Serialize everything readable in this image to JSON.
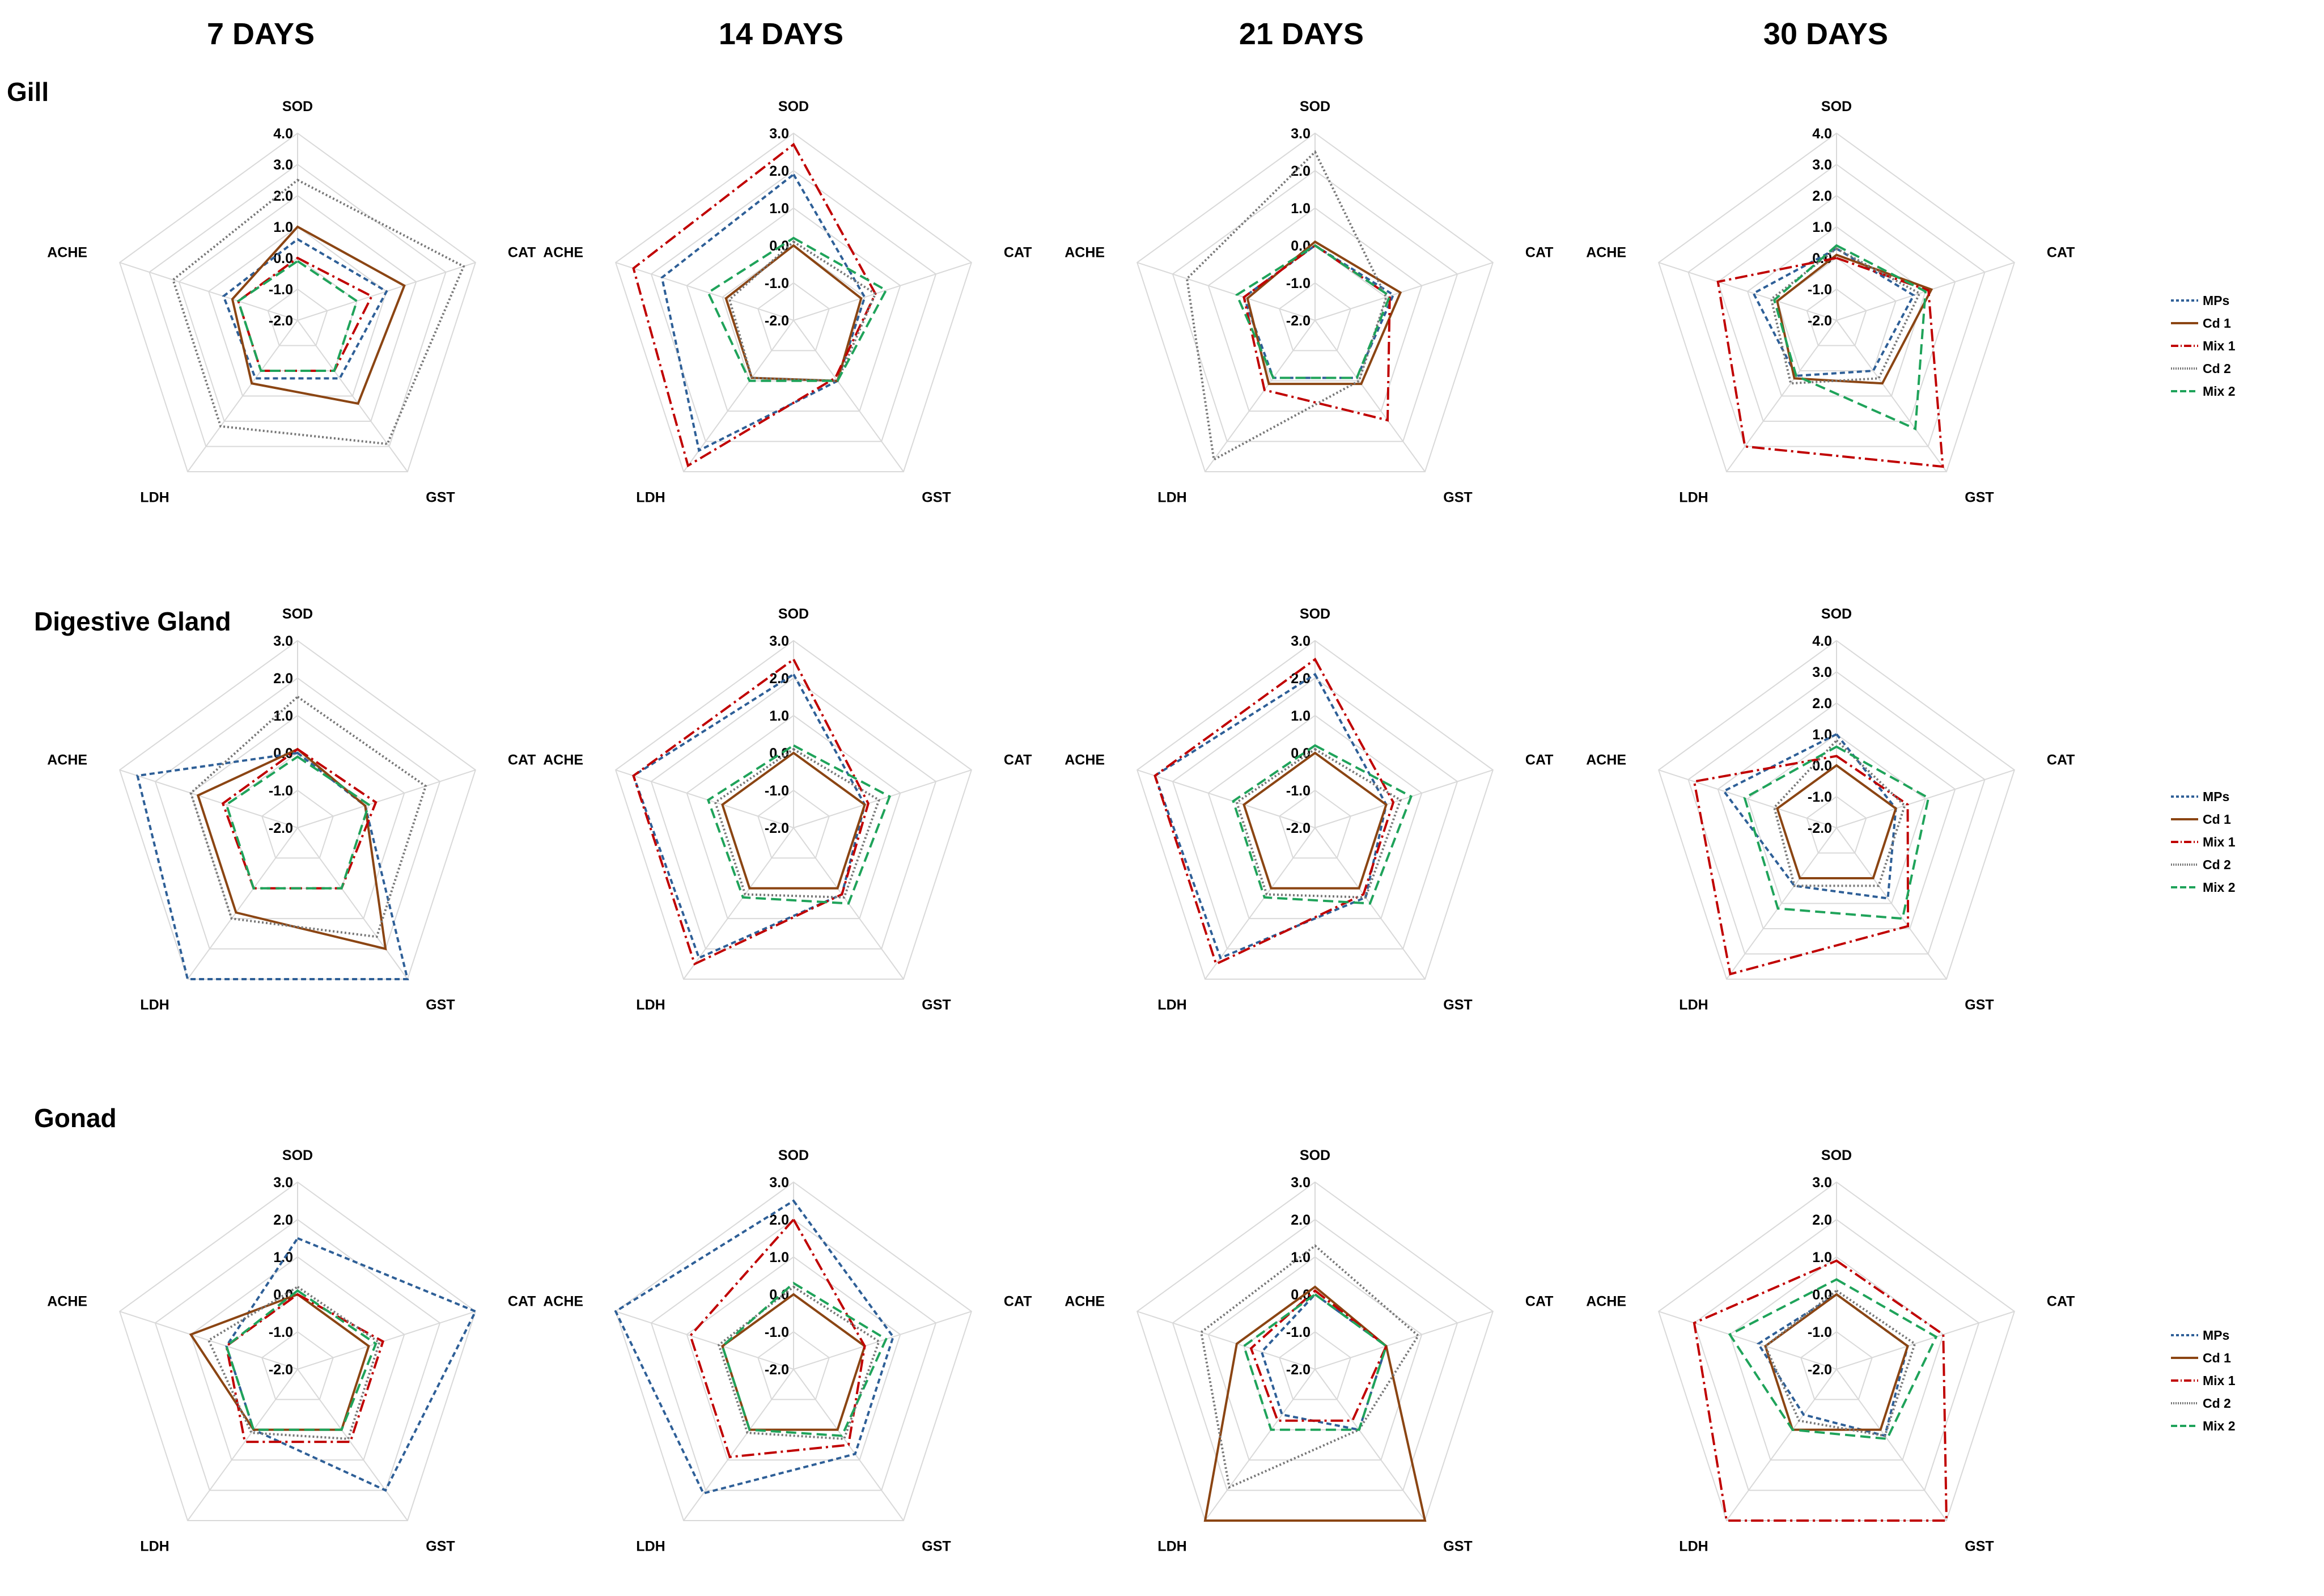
{
  "column_titles": [
    "7 DAYS",
    "14 DAYS",
    "21 DAYS",
    "30 DAYS"
  ],
  "row_titles": [
    "Gill",
    "Digestive Gland",
    "Gonad"
  ],
  "axes": [
    "SOD",
    "CAT",
    "GST",
    "LDH",
    "ACHE"
  ],
  "series_styles": [
    {
      "name": "MPs",
      "color": "#2e5f97",
      "dash": "9 6"
    },
    {
      "name": "Cd 1",
      "color": "#8b4513",
      "dash": ""
    },
    {
      "name": "Mix 1",
      "color": "#c00000",
      "dash": "22 7 4 7"
    },
    {
      "name": "Cd 2",
      "color": "#777777",
      "dash": "3 4"
    },
    {
      "name": "Mix 2",
      "color": "#1fa35a",
      "dash": "18 9"
    }
  ],
  "colors": {
    "grid": "#d9d9d9"
  },
  "chart_data": [
    {
      "type": "radar",
      "row": "Gill",
      "column": "7 DAYS",
      "axes": [
        "SOD",
        "CAT",
        "GST",
        "LDH",
        "ACHE"
      ],
      "rmin": -2.0,
      "rmax": 4.0,
      "ticks": [
        "4.0",
        "3.0",
        "2.0",
        "1.0",
        "0.0",
        "-1.0",
        "-2.0"
      ],
      "series": [
        {
          "name": "MPs",
          "values": [
            0.6,
            1.0,
            0.3,
            0.3,
            0.5
          ]
        },
        {
          "name": "Cd 1",
          "values": [
            1.0,
            1.6,
            1.3,
            0.5,
            0.2
          ]
        },
        {
          "name": "Mix 1",
          "values": [
            0.0,
            0.5,
            0.0,
            0.0,
            0.0
          ]
        },
        {
          "name": "Cd 2",
          "values": [
            2.5,
            3.6,
            2.9,
            2.2,
            2.2
          ]
        },
        {
          "name": "Mix 2",
          "values": [
            -0.1,
            0.0,
            0.0,
            0.0,
            0.0
          ]
        }
      ]
    },
    {
      "type": "radar",
      "row": "Gill",
      "column": "14 DAYS",
      "axes": [
        "SOD",
        "CAT",
        "GST",
        "LDH",
        "ACHE"
      ],
      "rmin": -2.0,
      "rmax": 3.0,
      "ticks": [
        "3.0",
        "2.0",
        "1.0",
        "0.0",
        "-1.0",
        "-2.0"
      ],
      "series": [
        {
          "name": "MPs",
          "values": [
            1.9,
            0.0,
            0.0,
            2.3,
            1.7
          ]
        },
        {
          "name": "Cd 1",
          "values": [
            0.0,
            -0.1,
            0.0,
            -0.1,
            -0.1
          ]
        },
        {
          "name": "Mix 1",
          "values": [
            2.7,
            0.3,
            -0.1,
            2.8,
            2.5
          ]
        },
        {
          "name": "Cd 2",
          "values": [
            0.1,
            0.3,
            0.0,
            -0.1,
            -0.2
          ]
        },
        {
          "name": "Mix 2",
          "values": [
            0.2,
            0.6,
            0.0,
            0.0,
            0.4
          ]
        }
      ]
    },
    {
      "type": "radar",
      "row": "Gill",
      "column": "21 DAYS",
      "axes": [
        "SOD",
        "CAT",
        "GST",
        "LDH",
        "ACHE"
      ],
      "rmin": -2.0,
      "rmax": 3.0,
      "ticks": [
        "3.0",
        "2.0",
        "1.0",
        "0.0",
        "-1.0",
        "-2.0"
      ],
      "series": [
        {
          "name": "MPs",
          "values": [
            0.0,
            0.2,
            -0.1,
            -0.1,
            0.0
          ]
        },
        {
          "name": "Cd 1",
          "values": [
            0.1,
            0.4,
            0.1,
            0.1,
            -0.1
          ]
        },
        {
          "name": "Mix 1",
          "values": [
            0.0,
            0.1,
            1.3,
            0.3,
            0.0
          ]
        },
        {
          "name": "Cd 2",
          "values": [
            2.5,
            0.0,
            0.0,
            2.6,
            1.6
          ]
        },
        {
          "name": "Mix 2",
          "values": [
            0.0,
            0.1,
            -0.1,
            -0.1,
            0.2
          ]
        }
      ]
    },
    {
      "type": "radar",
      "row": "Gill",
      "column": "30 DAYS",
      "axes": [
        "SOD",
        "CAT",
        "GST",
        "LDH",
        "ACHE"
      ],
      "rmin": -2.0,
      "rmax": 4.0,
      "ticks": [
        "4.0",
        "3.0",
        "2.0",
        "1.0",
        "0.0",
        "-1.0",
        "-2.0"
      ],
      "series": [
        {
          "name": "MPs",
          "values": [
            0.3,
            0.6,
            0.0,
            0.2,
            0.8
          ]
        },
        {
          "name": "Cd 1",
          "values": [
            0.1,
            1.2,
            0.5,
            0.3,
            0.0
          ]
        },
        {
          "name": "Mix 1",
          "values": [
            0.0,
            1.1,
            3.8,
            3.0,
            2.0
          ]
        },
        {
          "name": "Cd 2",
          "values": [
            0.3,
            0.8,
            0.3,
            0.5,
            0.2
          ]
        },
        {
          "name": "Mix 2",
          "values": [
            0.4,
            1.0,
            2.3,
            0.2,
            0.1
          ]
        }
      ]
    },
    {
      "type": "radar",
      "row": "Digestive Gland",
      "column": "7 DAYS",
      "axes": [
        "SOD",
        "CAT",
        "GST",
        "LDH",
        "ACHE"
      ],
      "rmin": -2.0,
      "rmax": 3.0,
      "ticks": [
        "3.0",
        "2.0",
        "1.0",
        "0.0",
        "-1.0",
        "-2.0"
      ],
      "series": [
        {
          "name": "MPs",
          "values": [
            0.0,
            -0.1,
            3.0,
            3.0,
            2.5
          ]
        },
        {
          "name": "Cd 1",
          "values": [
            0.1,
            -0.1,
            2.0,
            0.8,
            0.8
          ]
        },
        {
          "name": "Mix 1",
          "values": [
            0.1,
            0.2,
            0.0,
            0.0,
            0.1
          ]
        },
        {
          "name": "Cd 2",
          "values": [
            1.5,
            1.6,
            1.6,
            1.0,
            1.0
          ]
        },
        {
          "name": "Mix 2",
          "values": [
            -0.1,
            0.0,
            0.0,
            0.0,
            0.0
          ]
        }
      ]
    },
    {
      "type": "radar",
      "row": "Digestive Gland",
      "column": "14 DAYS",
      "axes": [
        "SOD",
        "CAT",
        "GST",
        "LDH",
        "ACHE"
      ],
      "rmin": -2.0,
      "rmax": 3.0,
      "ticks": [
        "3.0",
        "2.0",
        "1.0",
        "0.0",
        "-1.0",
        "-2.0"
      ],
      "series": [
        {
          "name": "MPs",
          "values": [
            2.1,
            0.0,
            0.2,
            2.3,
            2.5
          ]
        },
        {
          "name": "Cd 1",
          "values": [
            0.0,
            0.0,
            0.0,
            0.0,
            0.0
          ]
        },
        {
          "name": "Mix 1",
          "values": [
            2.5,
            0.1,
            0.2,
            2.5,
            2.5
          ]
        },
        {
          "name": "Cd 2",
          "values": [
            0.1,
            0.4,
            0.3,
            0.2,
            0.2
          ]
        },
        {
          "name": "Mix 2",
          "values": [
            0.2,
            0.7,
            0.5,
            0.3,
            0.4
          ]
        }
      ]
    },
    {
      "type": "radar",
      "row": "Digestive Gland",
      "column": "21 DAYS",
      "axes": [
        "SOD",
        "CAT",
        "GST",
        "LDH",
        "ACHE"
      ],
      "rmin": -2.0,
      "rmax": 3.0,
      "ticks": [
        "3.0",
        "2.0",
        "1.0",
        "0.0",
        "-1.0",
        "-2.0"
      ],
      "series": [
        {
          "name": "MPs",
          "values": [
            2.1,
            0.0,
            0.3,
            2.3,
            2.5
          ]
        },
        {
          "name": "Cd 1",
          "values": [
            0.0,
            0.0,
            0.0,
            0.0,
            0.0
          ]
        },
        {
          "name": "Mix 1",
          "values": [
            2.5,
            0.2,
            0.2,
            2.5,
            2.5
          ]
        },
        {
          "name": "Cd 2",
          "values": [
            0.1,
            0.4,
            0.3,
            0.2,
            0.2
          ]
        },
        {
          "name": "Mix 2",
          "values": [
            0.2,
            0.7,
            0.5,
            0.3,
            0.3
          ]
        }
      ]
    },
    {
      "type": "radar",
      "row": "Digestive Gland",
      "column": "30 DAYS",
      "axes": [
        "SOD",
        "CAT",
        "GST",
        "LDH",
        "ACHE"
      ],
      "rmin": -2.0,
      "rmax": 4.0,
      "ticks": [
        "4.0",
        "3.0",
        "2.0",
        "1.0",
        "0.0",
        "-1.0",
        "-2.0"
      ],
      "series": [
        {
          "name": "MPs",
          "values": [
            1.0,
            0.0,
            0.8,
            0.3,
            1.8
          ]
        },
        {
          "name": "Cd 1",
          "values": [
            0.0,
            0.0,
            0.0,
            0.0,
            0.0
          ]
        },
        {
          "name": "Mix 1",
          "values": [
            0.3,
            0.4,
            1.9,
            3.8,
            2.8
          ]
        },
        {
          "name": "Cd 2",
          "values": [
            0.8,
            0.3,
            0.3,
            0.3,
            0.1
          ]
        },
        {
          "name": "Mix 2",
          "values": [
            0.6,
            1.1,
            1.6,
            1.2,
            1.1
          ]
        }
      ]
    },
    {
      "type": "radar",
      "row": "Gonad",
      "column": "7 DAYS",
      "axes": [
        "SOD",
        "CAT",
        "GST",
        "LDH",
        "ACHE"
      ],
      "rmin": -2.0,
      "rmax": 3.0,
      "ticks": [
        "3.0",
        "2.0",
        "1.0",
        "0.0",
        "-1.0",
        "-2.0"
      ],
      "series": [
        {
          "name": "MPs",
          "values": [
            1.5,
            3.0,
            2.0,
            0.0,
            0.0
          ]
        },
        {
          "name": "Cd 1",
          "values": [
            0.0,
            0.0,
            0.0,
            0.0,
            1.0
          ]
        },
        {
          "name": "Mix 1",
          "values": [
            0.0,
            0.4,
            0.4,
            0.4,
            0.0
          ]
        },
        {
          "name": "Cd 2",
          "values": [
            0.2,
            0.3,
            0.3,
            0.1,
            0.5
          ]
        },
        {
          "name": "Mix 2",
          "values": [
            0.1,
            0.2,
            0.0,
            0.0,
            0.0
          ]
        }
      ]
    },
    {
      "type": "radar",
      "row": "Gonad",
      "column": "14 DAYS",
      "axes": [
        "SOD",
        "CAT",
        "GST",
        "LDH",
        "ACHE"
      ],
      "rmin": -2.0,
      "rmax": 3.0,
      "ticks": [
        "3.0",
        "2.0",
        "1.0",
        "0.0",
        "-1.0",
        "-2.0"
      ],
      "series": [
        {
          "name": "MPs",
          "values": [
            2.5,
            0.8,
            0.8,
            2.1,
            3.0
          ]
        },
        {
          "name": "Cd 1",
          "values": [
            0.0,
            0.0,
            0.0,
            0.0,
            0.0
          ]
        },
        {
          "name": "Mix 1",
          "values": [
            2.0,
            0.0,
            0.5,
            0.9,
            0.9
          ]
        },
        {
          "name": "Cd 2",
          "values": [
            0.2,
            0.4,
            0.3,
            0.1,
            0.1
          ]
        },
        {
          "name": "Mix 2",
          "values": [
            0.3,
            0.6,
            0.2,
            0.0,
            0.0
          ]
        }
      ]
    },
    {
      "type": "radar",
      "row": "Gonad",
      "column": "21 DAYS",
      "axes": [
        "SOD",
        "CAT",
        "GST",
        "LDH",
        "ACHE"
      ],
      "rmin": -2.0,
      "rmax": 3.0,
      "ticks": [
        "3.0",
        "2.0",
        "1.0",
        "0.0",
        "-1.0",
        "-2.0"
      ],
      "series": [
        {
          "name": "MPs",
          "values": [
            0.0,
            0.0,
            0.0,
            -0.5,
            -0.5
          ]
        },
        {
          "name": "Cd 1",
          "values": [
            0.2,
            0.0,
            3.0,
            3.0,
            0.2
          ]
        },
        {
          "name": "Mix 1",
          "values": [
            0.1,
            0.0,
            -0.3,
            -0.3,
            -0.2
          ]
        },
        {
          "name": "Cd 2",
          "values": [
            1.3,
            0.9,
            0.0,
            1.9,
            1.2
          ]
        },
        {
          "name": "Mix 2",
          "values": [
            0.0,
            0.0,
            0.0,
            0.0,
            0.0
          ]
        }
      ]
    },
    {
      "type": "radar",
      "row": "Gonad",
      "column": "30 DAYS",
      "axes": [
        "SOD",
        "CAT",
        "GST",
        "LDH",
        "ACHE"
      ],
      "rmin": -2.0,
      "rmax": 3.0,
      "ticks": [
        "3.0",
        "2.0",
        "1.0",
        "0.0",
        "-1.0",
        "-2.0"
      ],
      "series": [
        {
          "name": "MPs",
          "values": [
            0.0,
            0.0,
            0.2,
            -0.5,
            0.2
          ]
        },
        {
          "name": "Cd 1",
          "values": [
            0.0,
            0.0,
            0.0,
            0.0,
            0.0
          ]
        },
        {
          "name": "Mix 1",
          "values": [
            0.9,
            1.0,
            3.0,
            3.0,
            2.0
          ]
        },
        {
          "name": "Cd 2",
          "values": [
            0.1,
            0.2,
            0.2,
            -0.3,
            0.0
          ]
        },
        {
          "name": "Mix 2",
          "values": [
            0.4,
            0.8,
            0.3,
            0.0,
            1.0
          ]
        }
      ]
    }
  ]
}
